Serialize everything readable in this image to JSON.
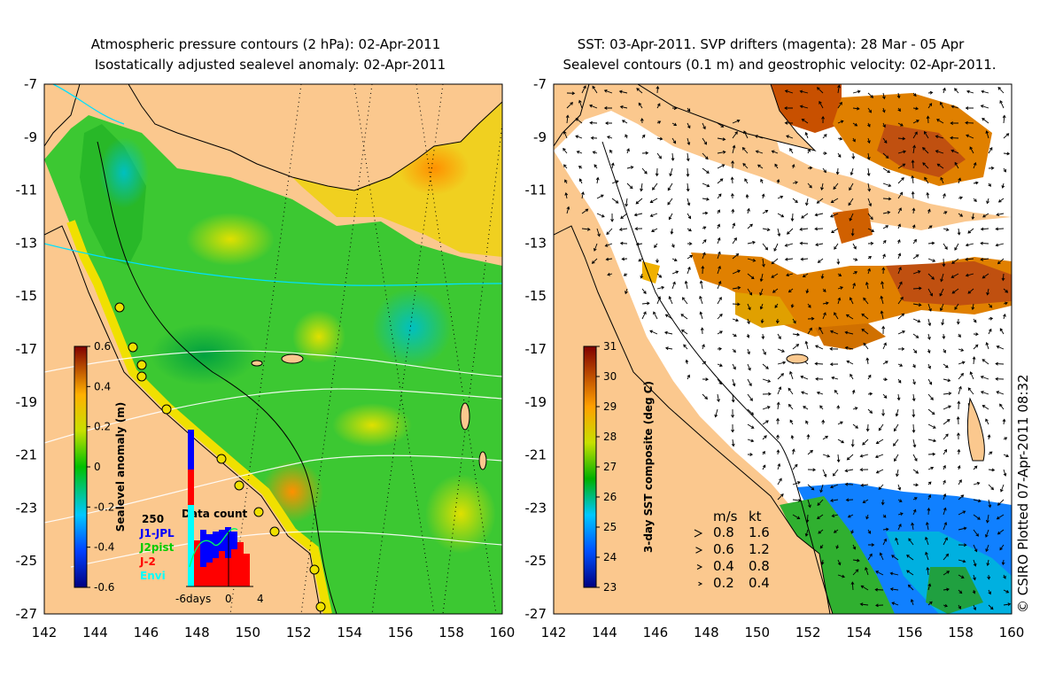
{
  "left": {
    "title_line1": "Atmospheric pressure contours (2 hPa): 02-Apr-2011",
    "title_line2": "Isostatically adjusted sealevel anomaly: 02-Apr-2011",
    "colorbar_label": "Sealevel anomaly (m)",
    "colorbar_ticks": [
      "0.6",
      "0.4",
      "0.2",
      "0",
      "-0.2",
      "-0.4",
      "-0.6"
    ],
    "data_count": {
      "title": "Data count",
      "ymax_label": "250",
      "legend": [
        {
          "label": "J1-JPL",
          "color": "#0000ff"
        },
        {
          "label": "J2pist",
          "color": "#00cc00"
        },
        {
          "label": "J-2",
          "color": "#ff0000"
        },
        {
          "label": "Envi",
          "color": "#00ffff"
        }
      ],
      "x_labels": [
        "-6days",
        "0",
        "4"
      ]
    }
  },
  "right": {
    "title_line1": "SST: 03-Apr-2011. SVP drifters (magenta): 28 Mar - 05 Apr",
    "title_line2": "Sealevel contours (0.1 m) and geostrophic velocity: 02-Apr-2011.",
    "colorbar_label": "3-day SST composite (deg C)",
    "colorbar_ticks": [
      "31",
      "30",
      "29",
      "28",
      "27",
      "26",
      "25",
      "24",
      "23"
    ],
    "velocity_legend": {
      "header_ms": "m/s",
      "header_kt": "kt",
      "rows": [
        {
          "ms": "0.8",
          "kt": "1.6"
        },
        {
          "ms": "0.6",
          "kt": "1.2"
        },
        {
          "ms": "0.4",
          "kt": "0.8"
        },
        {
          "ms": "0.2",
          "kt": "0.4"
        }
      ]
    }
  },
  "axes": {
    "lon_ticks": [
      "142",
      "144",
      "146",
      "148",
      "150",
      "152",
      "154",
      "156",
      "158",
      "160"
    ],
    "lat_ticks": [
      "-7",
      "-9",
      "-11",
      "-13",
      "-15",
      "-17",
      "-19",
      "-21",
      "-23",
      "-25",
      "-27"
    ]
  },
  "credit": "© CSIRO Plotted 07-Apr-2011 08:32"
}
